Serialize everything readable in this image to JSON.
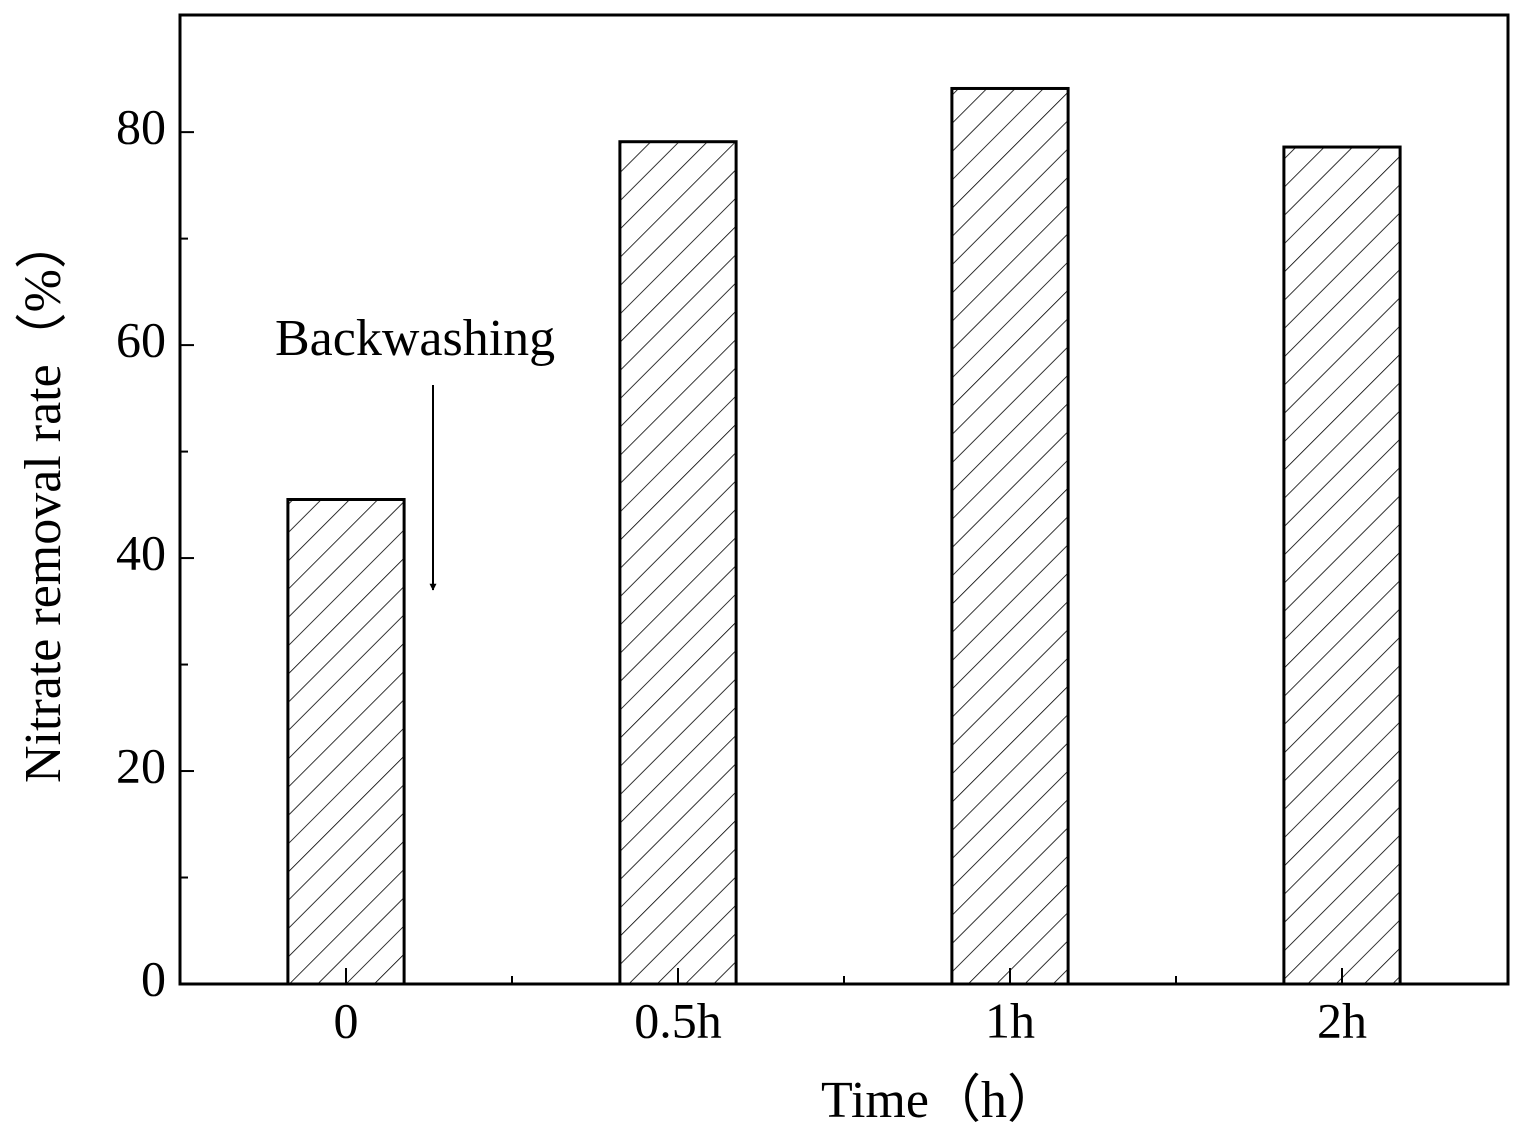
{
  "chart_data": {
    "type": "bar",
    "x_label": "Time（h）",
    "y_label": "Nitrate removal rate（%）",
    "categories": [
      "0",
      "0.5h",
      "1h",
      "2h"
    ],
    "values": [
      45.5,
      79.1,
      84.1,
      78.6
    ],
    "color": "#000000",
    "hatch": "/",
    "ylim": [
      0,
      91
    ],
    "yticks": [
      0,
      20,
      40,
      60,
      80
    ],
    "yticks_minor": [
      10,
      30,
      50,
      70
    ],
    "grid": false,
    "annotations": [
      {
        "text": "Backwashing"
      }
    ]
  }
}
